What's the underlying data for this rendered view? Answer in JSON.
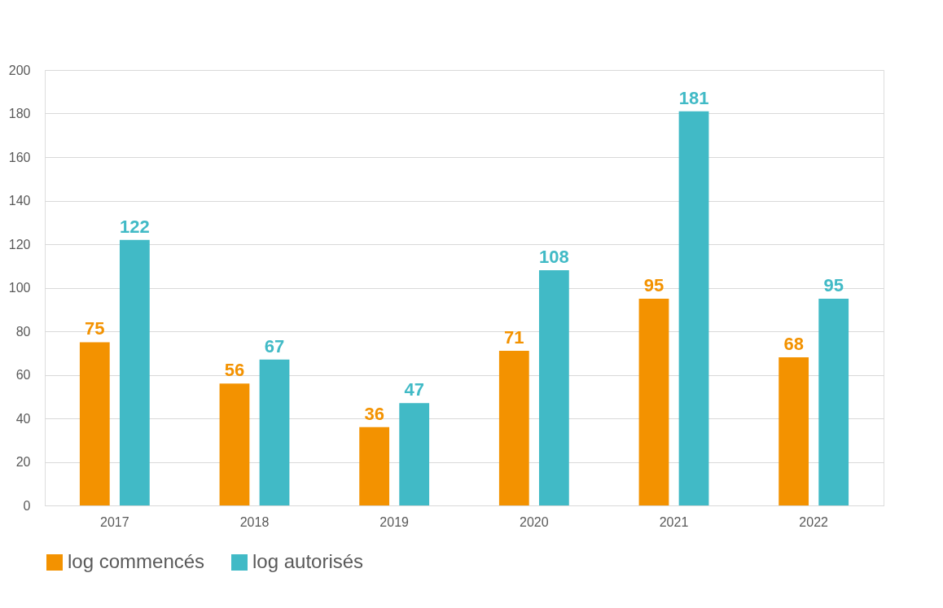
{
  "chart_data": {
    "type": "bar",
    "categories": [
      "2017",
      "2018",
      "2019",
      "2020",
      "2021",
      "2022"
    ],
    "series": [
      {
        "name": "log commencés",
        "color": "#f39200",
        "values": [
          75,
          56,
          36,
          71,
          95,
          68
        ]
      },
      {
        "name": "log autorisés",
        "color": "#41bac6",
        "values": [
          122,
          67,
          47,
          108,
          181,
          95
        ]
      }
    ],
    "ylim": [
      0,
      200
    ],
    "yticks": [
      0,
      20,
      40,
      60,
      80,
      100,
      120,
      140,
      160,
      180,
      200
    ],
    "grid": "y",
    "legend": "bottom",
    "data_labels": true
  }
}
